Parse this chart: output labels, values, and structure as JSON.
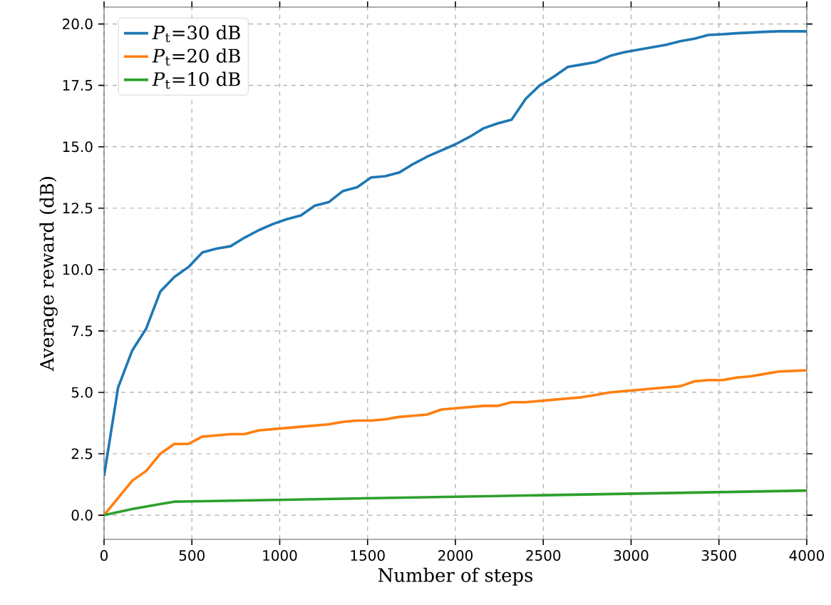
{
  "chart_data": {
    "type": "line",
    "xlabel": "Number of steps",
    "ylabel": "Average reward (dB)",
    "xlim": [
      0,
      4000
    ],
    "ylim": [
      -0.985,
      20.685
    ],
    "xticks": [
      0,
      500,
      1000,
      1500,
      2000,
      2500,
      3000,
      3500,
      4000
    ],
    "yticks": [
      {
        "value": 0,
        "label": "0.0"
      },
      {
        "value": 2.5,
        "label": "2.5"
      },
      {
        "value": 5,
        "label": "5.0"
      },
      {
        "value": 7.5,
        "label": "7.5"
      },
      {
        "value": 10,
        "label": "10.0"
      },
      {
        "value": 12.5,
        "label": "12.5"
      },
      {
        "value": 15,
        "label": "15.0"
      },
      {
        "value": 17.5,
        "label": "17.5"
      },
      {
        "value": 20,
        "label": "20.0"
      }
    ],
    "grid": true,
    "legend": "top left",
    "marker": "none",
    "line_style": "solid",
    "series": [
      {
        "name": "*P*$_{t}$=30 dB",
        "color": "#1f77b4",
        "x": [
          0,
          80,
          160,
          240,
          320,
          400,
          480,
          560,
          640,
          720,
          800,
          880,
          960,
          1040,
          1120,
          1200,
          1280,
          1360,
          1440,
          1520,
          1600,
          1680,
          1760,
          1840,
          1920,
          2000,
          2080,
          2160,
          2240,
          2320,
          2400,
          2480,
          2560,
          2640,
          2720,
          2800,
          2880,
          2960,
          3040,
          3120,
          3200,
          3280,
          3360,
          3440,
          3520,
          3600,
          3680,
          3760,
          3840,
          4000
        ],
        "values": [
          1.6,
          5.2,
          6.7,
          7.6,
          9.1,
          9.7,
          10.1,
          10.7,
          10.85,
          10.95,
          11.3,
          11.6,
          11.85,
          12.05,
          12.2,
          12.6,
          12.75,
          13.2,
          13.35,
          13.75,
          13.8,
          13.95,
          14.3,
          14.6,
          14.85,
          15.1,
          15.4,
          15.75,
          15.95,
          16.1,
          16.95,
          17.5,
          17.85,
          18.25,
          18.35,
          18.45,
          18.7,
          18.85,
          18.95,
          19.05,
          19.15,
          19.3,
          19.4,
          19.55,
          19.58,
          19.62,
          19.65,
          19.68,
          19.7,
          19.7
        ]
      },
      {
        "name": "*P*$_{t}$=20 dB",
        "color": "#ff7f0e",
        "x": [
          0,
          80,
          160,
          240,
          320,
          400,
          480,
          560,
          640,
          720,
          800,
          880,
          960,
          1040,
          1120,
          1200,
          1280,
          1360,
          1440,
          1520,
          1600,
          1680,
          1760,
          1840,
          1920,
          2000,
          2080,
          2160,
          2240,
          2320,
          2400,
          2480,
          2560,
          2640,
          2720,
          2800,
          2880,
          2960,
          3040,
          3120,
          3200,
          3280,
          3360,
          3440,
          3520,
          3600,
          3680,
          3760,
          3840,
          4000
        ],
        "values": [
          0,
          0.7,
          1.4,
          1.8,
          2.5,
          2.9,
          2.9,
          3.2,
          3.25,
          3.3,
          3.3,
          3.45,
          3.5,
          3.55,
          3.6,
          3.65,
          3.7,
          3.8,
          3.85,
          3.85,
          3.9,
          4.0,
          4.05,
          4.1,
          4.3,
          4.35,
          4.4,
          4.45,
          4.45,
          4.6,
          4.6,
          4.65,
          4.7,
          4.75,
          4.8,
          4.9,
          5.0,
          5.05,
          5.1,
          5.15,
          5.2,
          5.25,
          5.45,
          5.5,
          5.5,
          5.6,
          5.65,
          5.75,
          5.85,
          5.9
        ]
      },
      {
        "name": "*P*$_{t}$=10 dB",
        "color": "#2ca02c",
        "x": [
          0,
          160,
          320,
          400,
          560,
          800,
          1200,
          1600,
          2000,
          2400,
          2800,
          3200,
          3600,
          4000
        ],
        "values": [
          0,
          0.25,
          0.45,
          0.55,
          0.57,
          0.6,
          0.65,
          0.7,
          0.75,
          0.8,
          0.85,
          0.9,
          0.95,
          1.0
        ]
      }
    ]
  }
}
